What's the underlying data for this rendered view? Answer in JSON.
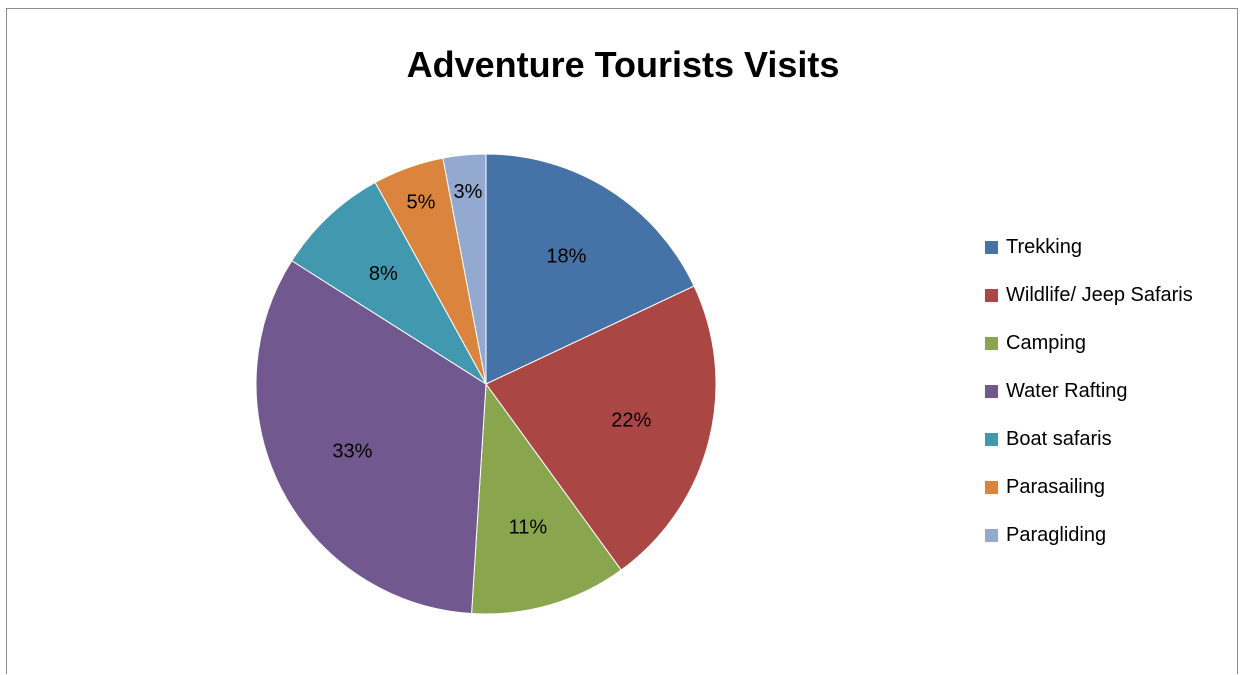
{
  "chart_data": {
    "type": "pie",
    "title": "Adventure Tourists Visits",
    "categories": [
      "Trekking",
      "Wildlife/ Jeep Safaris",
      "Camping",
      "Water Rafting",
      "Boat safaris",
      "Parasailing",
      "Paragliding"
    ],
    "values": [
      18,
      22,
      11,
      33,
      8,
      5,
      3
    ],
    "value_labels": [
      "18%",
      "22%",
      "11%",
      "33%",
      "8%",
      "5%",
      "3%"
    ],
    "colors": [
      "#4572a7",
      "#aa4643",
      "#89a54e",
      "#71588f",
      "#4198af",
      "#db843d",
      "#93a9cf"
    ],
    "legend_position": "right",
    "start_angle": "12 o'clock, clockwise"
  }
}
